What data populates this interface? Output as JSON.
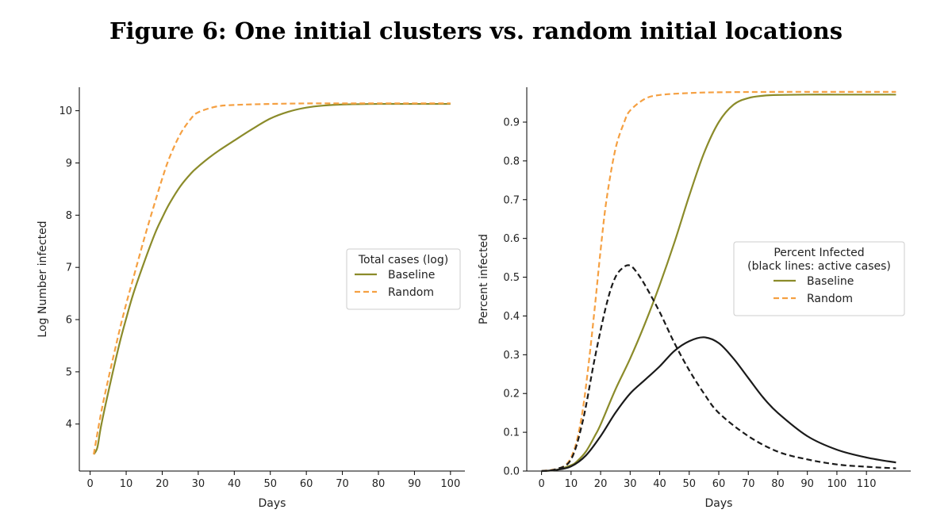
{
  "figure_title": "Figure 6: One initial clusters vs. random initial locations",
  "colors": {
    "baseline": "#8B8B2A",
    "random": "#F5A042",
    "active": "#1a1a1a"
  },
  "chart_data": [
    {
      "type": "line",
      "title": "",
      "xlabel": "Days",
      "ylabel": "Log Number infected",
      "xlim": [
        -3,
        104
      ],
      "ylim": [
        3.1,
        10.45
      ],
      "xticks": [
        0,
        10,
        20,
        30,
        40,
        50,
        60,
        70,
        80,
        90,
        100
      ],
      "yticks": [
        4,
        5,
        6,
        7,
        8,
        9,
        10
      ],
      "legend": {
        "title": "Total cases (log)",
        "position": "center-right",
        "entries": [
          "Baseline",
          "Random"
        ]
      },
      "series": [
        {
          "name": "Baseline",
          "style": "solid",
          "color": "#8B8B2A",
          "x": [
            1,
            2,
            3,
            5,
            8,
            10,
            12,
            15,
            18,
            20,
            22,
            25,
            28,
            30,
            33,
            36,
            40,
            45,
            50,
            55,
            60,
            65,
            70,
            80,
            90,
            100
          ],
          "y": [
            3.42,
            3.55,
            3.95,
            4.6,
            5.5,
            6.02,
            6.5,
            7.1,
            7.65,
            7.95,
            8.22,
            8.55,
            8.8,
            8.93,
            9.1,
            9.25,
            9.43,
            9.65,
            9.85,
            9.98,
            10.06,
            10.1,
            10.12,
            10.13,
            10.13,
            10.13
          ]
        },
        {
          "name": "Random",
          "style": "dashed",
          "color": "#F5A042",
          "x": [
            1,
            3,
            5,
            8,
            10,
            12,
            15,
            18,
            20,
            22,
            25,
            28,
            30,
            35,
            40,
            50,
            60,
            70,
            80,
            100
          ],
          "y": [
            3.42,
            4.2,
            4.85,
            5.75,
            6.3,
            6.8,
            7.55,
            8.25,
            8.7,
            9.1,
            9.55,
            9.85,
            9.97,
            10.08,
            10.11,
            10.13,
            10.14,
            10.14,
            10.14,
            10.14
          ]
        }
      ]
    },
    {
      "type": "line",
      "title": "",
      "xlabel": "Days",
      "ylabel": "Percent infected",
      "xlim": [
        -5,
        125
      ],
      "ylim": [
        0,
        0.99
      ],
      "xticks": [
        0,
        10,
        20,
        30,
        40,
        50,
        60,
        70,
        80,
        90,
        100,
        110
      ],
      "yticks": [
        0.0,
        0.1,
        0.2,
        0.3,
        0.4,
        0.5,
        0.6,
        0.7,
        0.8,
        0.9
      ],
      "legend": {
        "title_lines": [
          "Percent Infected",
          "(black lines: active cases)"
        ],
        "position": "center-right",
        "entries": [
          "Baseline",
          "Random"
        ]
      },
      "series": [
        {
          "name": "Baseline",
          "style": "solid",
          "color": "#8B8B2A",
          "x": [
            0,
            5,
            10,
            12,
            15,
            18,
            20,
            25,
            30,
            35,
            40,
            45,
            50,
            55,
            60,
            65,
            70,
            75,
            80,
            90,
            100,
            110,
            120
          ],
          "y": [
            0,
            0.003,
            0.015,
            0.025,
            0.05,
            0.09,
            0.12,
            0.21,
            0.29,
            0.38,
            0.48,
            0.59,
            0.71,
            0.82,
            0.9,
            0.945,
            0.962,
            0.968,
            0.97,
            0.971,
            0.971,
            0.971,
            0.971
          ]
        },
        {
          "name": "Random",
          "style": "dashed",
          "color": "#F5A042",
          "x": [
            0,
            5,
            8,
            10,
            12,
            14,
            16,
            18,
            20,
            22,
            25,
            28,
            30,
            35,
            40,
            50,
            60,
            80,
            100,
            120
          ],
          "y": [
            0,
            0.005,
            0.015,
            0.035,
            0.08,
            0.16,
            0.28,
            0.42,
            0.57,
            0.7,
            0.83,
            0.9,
            0.93,
            0.96,
            0.97,
            0.975,
            0.977,
            0.978,
            0.978,
            0.978
          ]
        },
        {
          "name": "Baseline active",
          "style": "solid",
          "color": "#1a1a1a",
          "x": [
            0,
            5,
            10,
            15,
            20,
            25,
            30,
            35,
            40,
            45,
            50,
            55,
            60,
            65,
            70,
            75,
            80,
            90,
            100,
            110,
            120
          ],
          "y": [
            0,
            0.003,
            0.012,
            0.04,
            0.09,
            0.15,
            0.2,
            0.235,
            0.27,
            0.31,
            0.335,
            0.345,
            0.33,
            0.29,
            0.24,
            0.19,
            0.15,
            0.09,
            0.055,
            0.035,
            0.022
          ]
        },
        {
          "name": "Random active",
          "style": "dashed",
          "color": "#1a1a1a",
          "x": [
            0,
            5,
            10,
            14,
            18,
            22,
            25,
            28,
            30,
            32,
            35,
            40,
            45,
            50,
            55,
            60,
            70,
            80,
            90,
            100,
            110,
            120
          ],
          "y": [
            0,
            0.005,
            0.03,
            0.13,
            0.29,
            0.43,
            0.5,
            0.527,
            0.53,
            0.515,
            0.48,
            0.41,
            0.33,
            0.26,
            0.2,
            0.15,
            0.09,
            0.05,
            0.03,
            0.017,
            0.011,
            0.007
          ]
        }
      ]
    }
  ]
}
